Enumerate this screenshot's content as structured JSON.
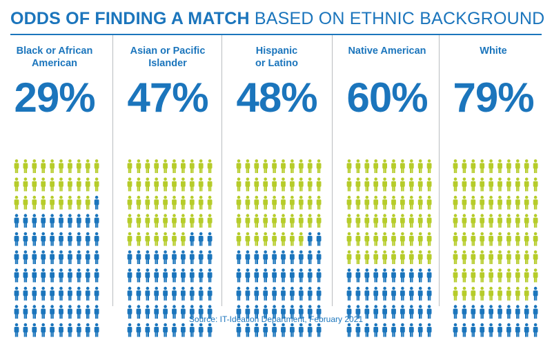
{
  "header": {
    "title_bold": "ODDS OF FINDING A MATCH",
    "title_rest": "BASED ON ETHNIC BACKGROUND"
  },
  "colors": {
    "accent": "#1b75bc",
    "match": "#b6cc2a",
    "no_match": "#1b75bc",
    "divider": "#b9bcbf"
  },
  "chart_data": {
    "type": "pictograph",
    "title": "ODDS OF FINDING A MATCH BASED ON ETHNIC BACKGROUND",
    "categories": [
      "Black or African American",
      "Asian or Pacific Islander",
      "Hispanic or Latino",
      "Native American",
      "White"
    ],
    "values": [
      29,
      47,
      48,
      60,
      79
    ],
    "value_labels": [
      "29%",
      "47%",
      "48%",
      "60%",
      "79%"
    ],
    "icons_per_group": 100,
    "icon": "person-icon",
    "legend": []
  },
  "groups": [
    {
      "label": "Black or African\nAmerican",
      "value_label": "29%",
      "pct": 29
    },
    {
      "label": "Asian or Pacific\nIslander",
      "value_label": "47%",
      "pct": 47
    },
    {
      "label": "Hispanic\nor Latino",
      "value_label": "48%",
      "pct": 48
    },
    {
      "label": "Native American",
      "value_label": "60%",
      "pct": 60
    },
    {
      "label": "White",
      "value_label": "79%",
      "pct": 79
    }
  ],
  "footer": {
    "source": "Source: IT-Ideation Department, February 2021"
  }
}
